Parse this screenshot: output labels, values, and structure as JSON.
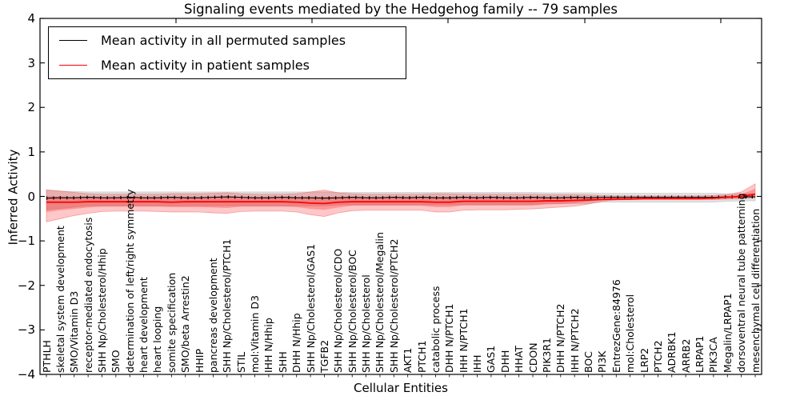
{
  "legend": {
    "items": [
      {
        "label": "Mean activity in all permuted samples",
        "color": "#000000"
      },
      {
        "label": "Mean activity in patient samples",
        "color": "#ff0000"
      }
    ]
  },
  "chart_data": {
    "type": "line",
    "title": "Signaling events mediated by the Hedgehog family -- 79 samples",
    "xlabel": "Cellular Entities",
    "ylabel": "Inferred Activity",
    "ylim": [
      -4,
      4
    ],
    "grid": false,
    "legend_position": "upper left",
    "ytick_labels": [
      "4",
      "3",
      "2",
      "1",
      "0",
      "−1",
      "−2",
      "−3",
      "−4"
    ],
    "ytick_values": [
      4,
      3,
      2,
      1,
      0,
      -1,
      -2,
      -3,
      -4
    ],
    "categories": [
      "PTHLH",
      "skeletal system development",
      "SMO/Vitamin D3",
      "receptor-mediated endocytosis",
      "SHH Np/Cholesterol/Hhip",
      "SMO",
      "determination of left/right symmetry",
      "heart development",
      "heart looping",
      "somite specification",
      "SMO/beta Arrestin2",
      "HHIP",
      "pancreas development",
      "SHH Np/Cholesterol/PTCH1",
      "STIL",
      "mol:Vitamin D3",
      "IHH N/Hhip",
      "SHH",
      "DHH N/Hhip",
      "SHH Np/Cholesterol/GAS1",
      "TGFB2",
      "SHH Np/Cholesterol/CDO",
      "SHH Np/Cholesterol/BOC",
      "SHH Np/Cholesterol",
      "SHH Np/Cholesterol/Megalin",
      "SHH Np/Cholesterol/PTCH2",
      "AKT1",
      "PTCH1",
      "catabolic process",
      "DHH N/PTCH1",
      "IHH N/PTCH1",
      "IHH",
      "GAS1",
      "DHH",
      "HHAT",
      "CDON",
      "PIK3R1",
      "DHH N/PTCH2",
      "IHH N/PTCH2",
      "BOC",
      "PI3K",
      "EntrezGene:84976",
      "mol:Cholesterol",
      "LRP2",
      "PTCH2",
      "ADRBK1",
      "ARRB2",
      "LRPAP1",
      "PIK3CA",
      "Megalin/LRPAP1",
      "dorsoventral neural tube patterning",
      "mesenchymal cell differentiation"
    ],
    "series": [
      {
        "name": "Mean activity in all permuted samples",
        "color": "#000000",
        "style": "solid-with-dash-marks",
        "values": [
          -0.04,
          -0.03,
          -0.03,
          -0.02,
          -0.03,
          -0.03,
          -0.02,
          -0.03,
          -0.03,
          -0.02,
          -0.03,
          -0.03,
          -0.02,
          -0.01,
          -0.02,
          -0.03,
          -0.03,
          -0.02,
          -0.03,
          -0.03,
          -0.04,
          -0.03,
          -0.02,
          -0.03,
          -0.03,
          -0.02,
          -0.03,
          -0.02,
          -0.03,
          -0.03,
          -0.02,
          -0.03,
          -0.02,
          -0.03,
          -0.03,
          -0.02,
          -0.03,
          -0.03,
          -0.02,
          -0.03,
          -0.02,
          -0.02,
          -0.02,
          -0.02,
          -0.02,
          -0.02,
          -0.02,
          -0.02,
          -0.02,
          -0.01,
          -0.01,
          -0.01
        ]
      },
      {
        "name": "Mean activity in patient samples",
        "color": "#ff0000",
        "style": "solid",
        "values": [
          -0.13,
          -0.13,
          -0.13,
          -0.12,
          -0.12,
          -0.12,
          -0.12,
          -0.12,
          -0.12,
          -0.13,
          -0.12,
          -0.12,
          -0.12,
          -0.12,
          -0.12,
          -0.12,
          -0.12,
          -0.12,
          -0.13,
          -0.15,
          -0.16,
          -0.13,
          -0.12,
          -0.12,
          -0.12,
          -0.12,
          -0.12,
          -0.12,
          -0.13,
          -0.13,
          -0.11,
          -0.11,
          -0.11,
          -0.11,
          -0.11,
          -0.11,
          -0.1,
          -0.1,
          -0.09,
          -0.08,
          -0.07,
          -0.06,
          -0.06,
          -0.05,
          -0.05,
          -0.05,
          -0.05,
          -0.05,
          -0.04,
          -0.02,
          0.0,
          0.05
        ]
      }
    ],
    "bands": [
      {
        "name": "permuted-samples-range",
        "color": "#999999",
        "fill_opacity": 0.3,
        "edge_color": "#bbbbbb",
        "upper": [
          0.13,
          0.12,
          0.11,
          0.1,
          0.1,
          0.1,
          0.1,
          0.1,
          0.1,
          0.1,
          0.1,
          0.1,
          0.1,
          0.1,
          0.1,
          0.1,
          0.1,
          0.1,
          0.1,
          0.1,
          0.1,
          0.09,
          0.09,
          0.09,
          0.09,
          0.09,
          0.09,
          0.09,
          0.09,
          0.09,
          0.09,
          0.09,
          0.09,
          0.09,
          0.09,
          0.09,
          0.08,
          0.08,
          0.08,
          0.08,
          0.07,
          0.07,
          0.07,
          0.07,
          0.07,
          0.07,
          0.07,
          0.07,
          0.07,
          0.06,
          0.06,
          0.06
        ],
        "lower": [
          -0.3,
          -0.27,
          -0.24,
          -0.21,
          -0.21,
          -0.21,
          -0.21,
          -0.21,
          -0.21,
          -0.21,
          -0.21,
          -0.21,
          -0.21,
          -0.21,
          -0.21,
          -0.21,
          -0.21,
          -0.21,
          -0.21,
          -0.21,
          -0.21,
          -0.19,
          -0.19,
          -0.19,
          -0.19,
          -0.19,
          -0.19,
          -0.19,
          -0.19,
          -0.19,
          -0.19,
          -0.19,
          -0.19,
          -0.19,
          -0.19,
          -0.19,
          -0.16,
          -0.16,
          -0.16,
          -0.16,
          -0.13,
          -0.13,
          -0.13,
          -0.13,
          -0.13,
          -0.13,
          -0.13,
          -0.13,
          -0.13,
          -0.11,
          -0.1,
          -0.1
        ]
      },
      {
        "name": "patient-samples-range-outer",
        "color": "#ff0000",
        "fill_opacity": 0.22,
        "edge_color": "#e87070",
        "upper": [
          0.15,
          0.12,
          0.09,
          0.06,
          0.05,
          0.05,
          0.05,
          0.05,
          0.05,
          0.06,
          0.06,
          0.06,
          0.07,
          0.08,
          0.06,
          0.05,
          0.05,
          0.05,
          0.06,
          0.1,
          0.14,
          0.08,
          0.06,
          0.05,
          0.05,
          0.05,
          0.05,
          0.05,
          0.06,
          0.06,
          0.05,
          0.05,
          0.05,
          0.05,
          0.05,
          0.05,
          0.04,
          0.04,
          0.04,
          0.03,
          0.02,
          0.01,
          0.01,
          0.01,
          0.01,
          0.01,
          0.01,
          0.01,
          0.02,
          0.04,
          0.1,
          0.28
        ],
        "lower": [
          -0.57,
          -0.5,
          -0.43,
          -0.38,
          -0.34,
          -0.33,
          -0.33,
          -0.33,
          -0.34,
          -0.35,
          -0.35,
          -0.35,
          -0.37,
          -0.38,
          -0.34,
          -0.33,
          -0.33,
          -0.33,
          -0.35,
          -0.41,
          -0.45,
          -0.37,
          -0.32,
          -0.31,
          -0.31,
          -0.31,
          -0.31,
          -0.31,
          -0.35,
          -0.35,
          -0.31,
          -0.3,
          -0.3,
          -0.3,
          -0.29,
          -0.28,
          -0.26,
          -0.24,
          -0.22,
          -0.17,
          -0.11,
          -0.08,
          -0.07,
          -0.07,
          -0.07,
          -0.07,
          -0.07,
          -0.07,
          -0.07,
          -0.06,
          -0.05,
          -0.03
        ]
      },
      {
        "name": "patient-samples-range-inner",
        "color": "#ff0000",
        "fill_opacity": 0.25,
        "edge_color": "none",
        "upper": [
          0.01,
          0.0,
          -0.02,
          -0.03,
          -0.03,
          -0.03,
          -0.03,
          -0.03,
          -0.03,
          -0.03,
          -0.03,
          -0.03,
          -0.02,
          -0.02,
          -0.03,
          -0.03,
          -0.03,
          -0.03,
          -0.03,
          -0.02,
          -0.01,
          -0.02,
          -0.03,
          -0.03,
          -0.03,
          -0.03,
          -0.03,
          -0.03,
          -0.03,
          -0.03,
          -0.03,
          -0.03,
          -0.03,
          -0.03,
          -0.03,
          -0.03,
          -0.03,
          -0.03,
          -0.02,
          -0.02,
          -0.02,
          -0.02,
          -0.02,
          -0.02,
          -0.02,
          -0.02,
          -0.02,
          -0.02,
          -0.01,
          0.01,
          0.05,
          0.17
        ],
        "lower": [
          -0.35,
          -0.31,
          -0.28,
          -0.25,
          -0.23,
          -0.23,
          -0.23,
          -0.23,
          -0.23,
          -0.24,
          -0.24,
          -0.24,
          -0.25,
          -0.26,
          -0.23,
          -0.23,
          -0.23,
          -0.23,
          -0.24,
          -0.28,
          -0.3,
          -0.25,
          -0.21,
          -0.21,
          -0.21,
          -0.21,
          -0.21,
          -0.21,
          -0.24,
          -0.24,
          -0.2,
          -0.2,
          -0.2,
          -0.2,
          -0.2,
          -0.2,
          -0.18,
          -0.17,
          -0.15,
          -0.12,
          -0.08,
          -0.05,
          -0.05,
          -0.05,
          -0.05,
          -0.05,
          -0.05,
          -0.05,
          -0.05,
          -0.04,
          -0.03,
          -0.01
        ]
      }
    ]
  }
}
